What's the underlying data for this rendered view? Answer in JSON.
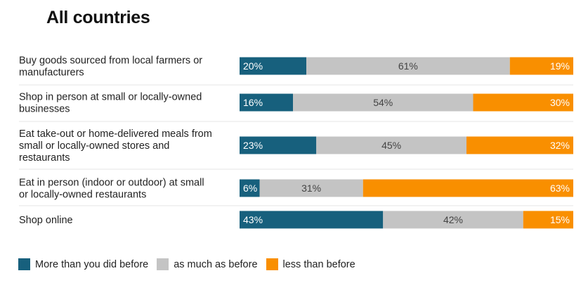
{
  "chart_data": {
    "type": "bar",
    "orientation": "horizontal",
    "stacked": "100%",
    "title": "All countries",
    "categories": [
      [
        "Buy goods sourced from local farmers or",
        "manufacturers"
      ],
      [
        "Shop in person at small or locally-owned",
        "businesses"
      ],
      [
        "Eat take-out or home-delivered meals from",
        "small or locally-owned stores and",
        "restaurants"
      ],
      [
        "Eat in person (indoor or outdoor) at small",
        "or locally-owned restaurants"
      ],
      [
        "Shop online"
      ]
    ],
    "series": [
      {
        "name": "More than you did before",
        "color": "#17607d",
        "values": [
          20,
          16,
          23,
          6,
          43
        ]
      },
      {
        "name": "as much as before",
        "color": "#c4c4c4",
        "values": [
          61,
          54,
          45,
          31,
          42
        ]
      },
      {
        "name": "less than before",
        "color": "#f98f00",
        "values": [
          19,
          30,
          32,
          63,
          15
        ]
      }
    ],
    "value_suffix": "%",
    "legend_position": "bottom-left"
  }
}
